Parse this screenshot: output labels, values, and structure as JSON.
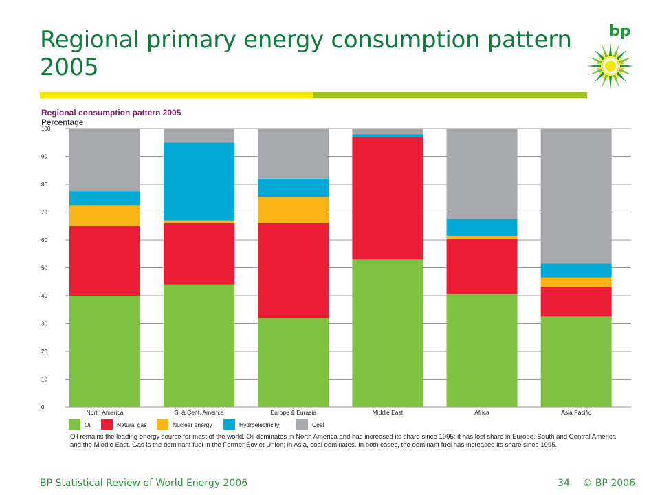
{
  "slide": {
    "title": "Regional primary energy consumption pattern 2005",
    "footer_left": "BP Statistical Review of World Energy 2006",
    "page_number": "34",
    "copyright": "© BP 2006",
    "logo_text": "bp"
  },
  "colors": {
    "title": "#0f7a3c",
    "bar_yellow": "#f5e800",
    "bar_green": "#9dc31b"
  },
  "chart_data": {
    "type": "bar",
    "stacked": true,
    "title": "Regional consumption pattern 2005",
    "ylabel": "Percentage",
    "ylim": [
      0,
      100
    ],
    "yticks": [
      0,
      10,
      20,
      30,
      40,
      50,
      60,
      70,
      80,
      90,
      100
    ],
    "grid": true,
    "legend_position": "bottom-left",
    "categories": [
      "North America",
      "S. & Cent. America",
      "Europe & Eurasia",
      "Middle East",
      "Africa",
      "Asia Pacific"
    ],
    "series": [
      {
        "name": "Oil",
        "color": "#7fc241",
        "values": [
          40,
          44,
          32,
          53,
          40.5,
          32.5
        ]
      },
      {
        "name": "Natural gas",
        "color": "#eb1c33",
        "values": [
          25,
          22,
          34,
          44,
          20,
          10.5
        ]
      },
      {
        "name": "Nuclear energy",
        "color": "#fbb416",
        "values": [
          7.5,
          1,
          9.5,
          0,
          1,
          3.5
        ]
      },
      {
        "name": "Hydroelectricity",
        "color": "#00a9d6",
        "values": [
          5,
          28,
          6.5,
          1,
          6,
          5
        ]
      },
      {
        "name": "Coal",
        "color": "#a7a9ac",
        "values": [
          22.5,
          5,
          18,
          2,
          32.5,
          48.5
        ]
      }
    ],
    "caption": "Oil remains the leading energy source for most of the world. Oil dominates in North America and has increased its share since 1995; it has lost share in Europe, South and Central America and the Middle East. Gas is the dominant fuel in the Former Soviet Union; in Asia, coal dominates. In both cases, the dominant fuel has increased its share since 1995."
  }
}
